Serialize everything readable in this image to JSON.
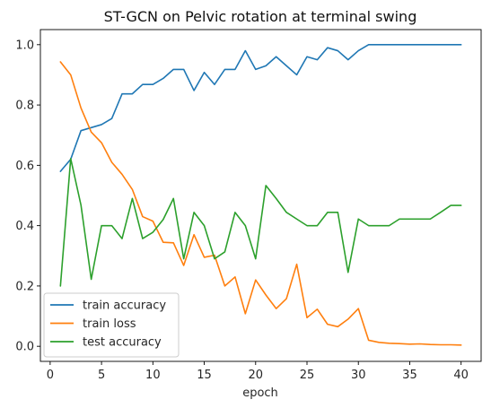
{
  "chart_data": {
    "type": "line",
    "title": "ST-GCN on Pelvic rotation at terminal swing",
    "xlabel": "epoch",
    "ylabel": "",
    "xlim": [
      -0.95,
      41.95
    ],
    "ylim": [
      -0.05,
      1.05
    ],
    "x_ticks": [
      0,
      5,
      10,
      15,
      20,
      25,
      30,
      35,
      40
    ],
    "y_ticks": [
      0.0,
      0.2,
      0.4,
      0.6,
      0.8,
      1.0
    ],
    "y_tick_labels": [
      "0.0",
      "0.2",
      "0.4",
      "0.6",
      "0.8",
      "1.0"
    ],
    "grid": false,
    "legend_position": "lower-left",
    "x": [
      1,
      2,
      3,
      4,
      5,
      6,
      7,
      8,
      9,
      10,
      11,
      12,
      13,
      14,
      15,
      16,
      17,
      18,
      19,
      20,
      21,
      22,
      23,
      24,
      25,
      26,
      27,
      28,
      29,
      30,
      31,
      32,
      33,
      34,
      35,
      36,
      37,
      38,
      39,
      40
    ],
    "series": [
      {
        "name": "train accuracy",
        "color": "#1f77b4",
        "values": [
          0.58,
          0.62,
          0.715,
          0.725,
          0.735,
          0.755,
          0.837,
          0.837,
          0.868,
          0.868,
          0.888,
          0.918,
          0.918,
          0.848,
          0.908,
          0.868,
          0.918,
          0.918,
          0.98,
          0.918,
          0.93,
          0.96,
          0.93,
          0.9,
          0.96,
          0.95,
          0.99,
          0.98,
          0.95,
          0.98,
          1.0,
          1.0,
          1.0,
          1.0,
          1.0,
          1.0,
          1.0,
          1.0,
          1.0,
          1.0
        ]
      },
      {
        "name": "train loss",
        "color": "#ff7f0e",
        "values": [
          0.943,
          0.9,
          0.79,
          0.71,
          0.675,
          0.61,
          0.57,
          0.52,
          0.43,
          0.415,
          0.345,
          0.343,
          0.268,
          0.37,
          0.295,
          0.302,
          0.2,
          0.23,
          0.108,
          0.22,
          0.17,
          0.125,
          0.158,
          0.272,
          0.095,
          0.123,
          0.073,
          0.065,
          0.09,
          0.125,
          0.02,
          0.013,
          0.01,
          0.009,
          0.007,
          0.008,
          0.006,
          0.005,
          0.005,
          0.004
        ]
      },
      {
        "name": "test accuracy",
        "color": "#2ca02c",
        "values": [
          0.2,
          0.622,
          0.468,
          0.222,
          0.4,
          0.4,
          0.357,
          0.49,
          0.357,
          0.378,
          0.42,
          0.49,
          0.29,
          0.444,
          0.4,
          0.29,
          0.313,
          0.444,
          0.4,
          0.29,
          0.533,
          0.49,
          0.444,
          0.422,
          0.4,
          0.4,
          0.444,
          0.444,
          0.245,
          0.422,
          0.4,
          0.4,
          0.4,
          0.422,
          0.422,
          0.422,
          0.422,
          0.444,
          0.467,
          0.467
        ]
      }
    ]
  }
}
